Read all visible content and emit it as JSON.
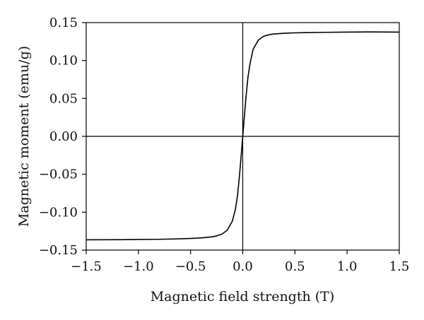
{
  "chart_data": {
    "type": "line",
    "title": "",
    "xlabel": "Magnetic field strength (T)",
    "ylabel": "Magnetic moment (emu/g)",
    "xlim": [
      -1.5,
      1.5
    ],
    "ylim": [
      -0.15,
      0.15
    ],
    "x_ticks": [
      -1.5,
      -1.0,
      -0.5,
      0.0,
      0.5,
      1.0,
      1.5
    ],
    "x_tick_labels": [
      "−1.5",
      "−1.0",
      "−0.5",
      "0.0",
      "0.5",
      "1.0",
      "1.5"
    ],
    "y_ticks": [
      -0.15,
      -0.1,
      -0.05,
      0.0,
      0.05,
      0.1,
      0.15
    ],
    "y_tick_labels": [
      "−0.15",
      "−0.10",
      "−0.05",
      "0.00",
      "0.05",
      "0.10",
      "0.15"
    ],
    "grid": false,
    "zero_lines": true,
    "line_color": "#000000",
    "series": [
      {
        "x": [
          -1.5,
          -1.2,
          -1.0,
          -0.8,
          -0.6,
          -0.5,
          -0.4,
          -0.3,
          -0.25,
          -0.2,
          -0.15,
          -0.1,
          -0.07,
          -0.05,
          -0.03,
          -0.01,
          0.0,
          0.01,
          0.03,
          0.05,
          0.07,
          0.1,
          0.15,
          0.2,
          0.25,
          0.3,
          0.4,
          0.5,
          0.6,
          0.8,
          1.0,
          1.2,
          1.5
        ],
        "y": [
          -0.1365,
          -0.1363,
          -0.1361,
          -0.1358,
          -0.1352,
          -0.1347,
          -0.134,
          -0.1327,
          -0.1313,
          -0.129,
          -0.124,
          -0.112,
          -0.096,
          -0.078,
          -0.05,
          -0.017,
          0.0,
          0.017,
          0.05,
          0.078,
          0.096,
          0.115,
          0.127,
          0.132,
          0.134,
          0.135,
          0.136,
          0.1365,
          0.1368,
          0.1372,
          0.1375,
          0.1377,
          0.1375
        ]
      }
    ]
  }
}
